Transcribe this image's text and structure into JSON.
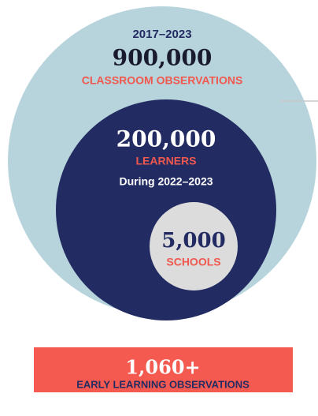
{
  "outer": {
    "period": "2017–2023",
    "number": "900,000",
    "label": "CLASSROOM OBSERVATIONS"
  },
  "middle": {
    "number": "200,000",
    "label": "LEARNERS",
    "note": "During 2022–2023"
  },
  "inner": {
    "number": "5,000",
    "label": "SCHOOLS"
  },
  "callout": {
    "number": "1,060+",
    "label": "EARLY LEARNING OBSERVATIONS"
  }
}
